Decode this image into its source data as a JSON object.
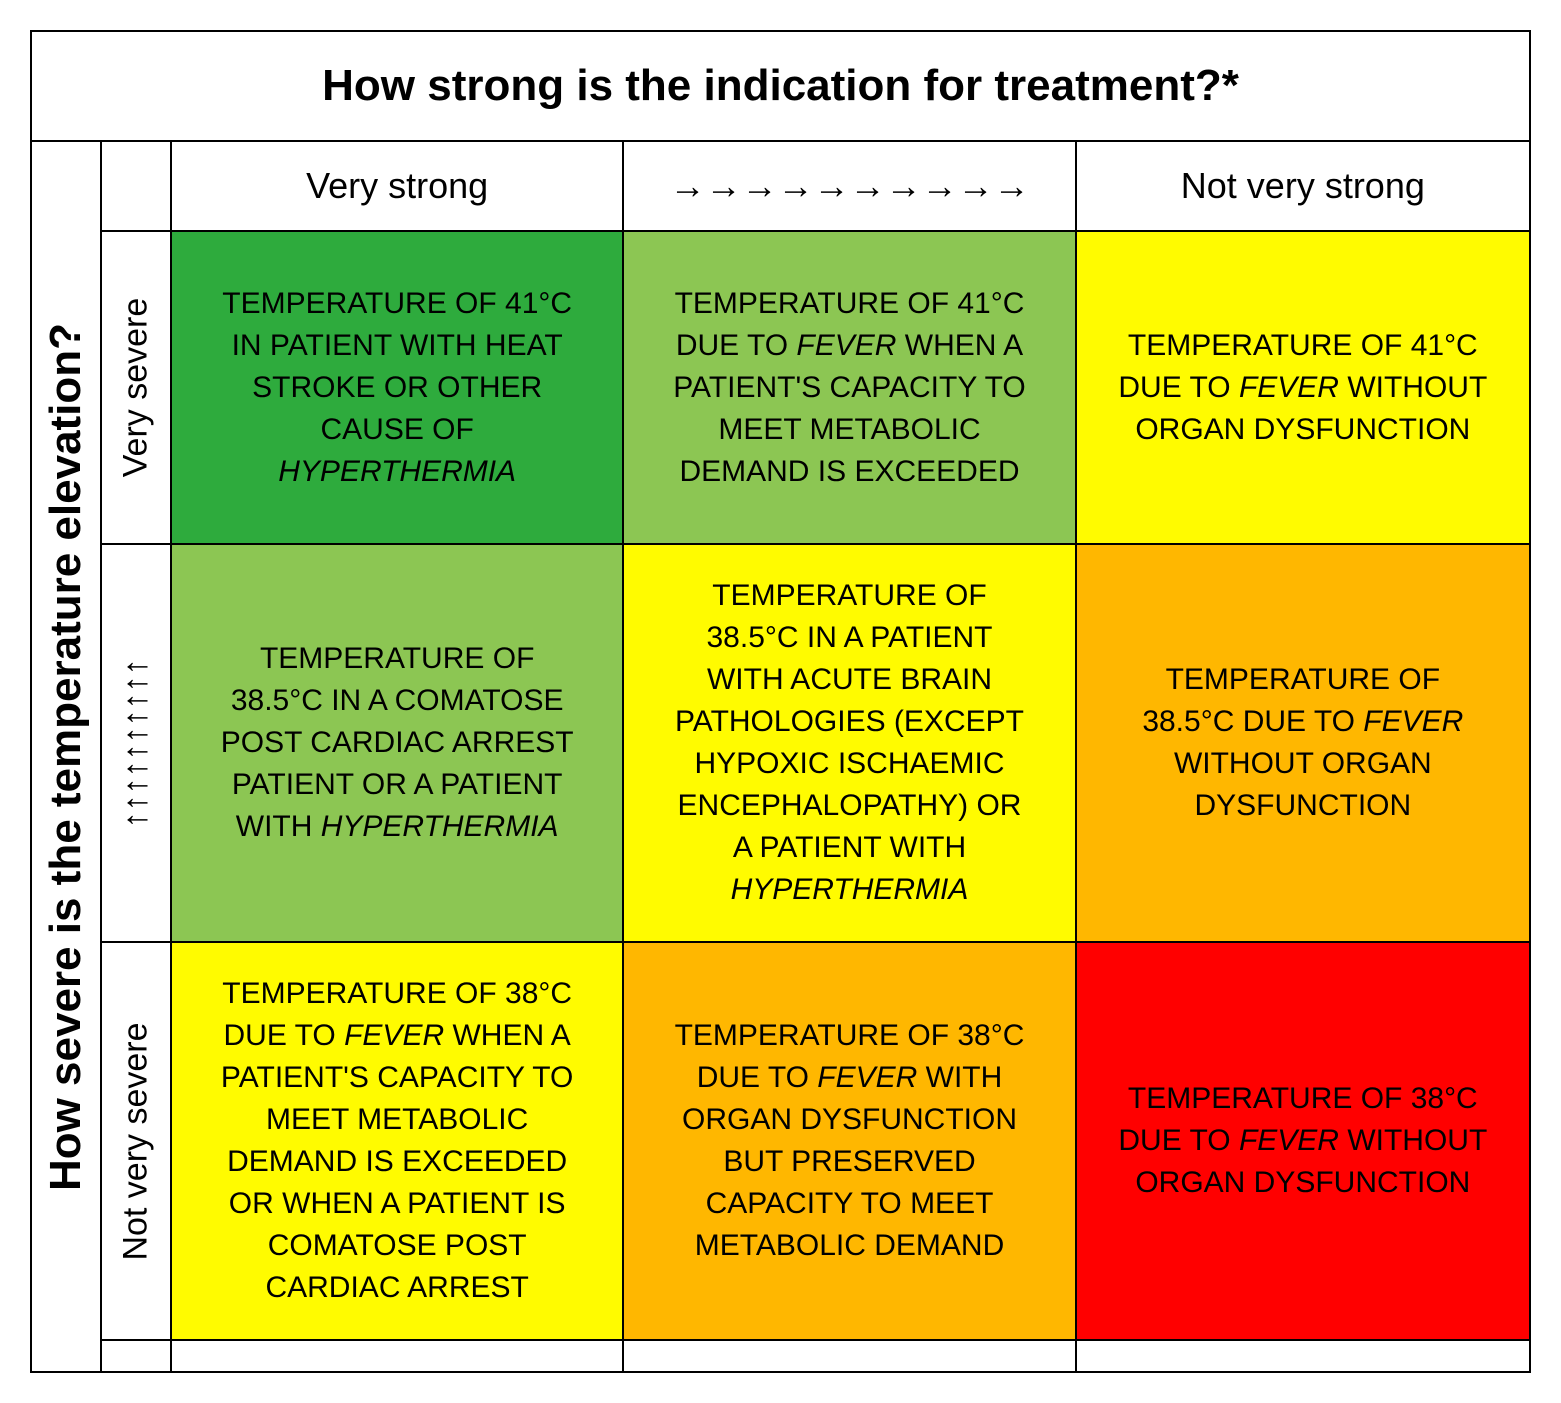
{
  "matrix": {
    "type": "table",
    "top_header": "How strong is the indication for treatment?*",
    "left_header": "How severe is the temperature elevation?",
    "header_fontsize": 44,
    "header_fontweight": "700",
    "col_labels": [
      "Very strong",
      "→→→→→→→→→→",
      "Not very strong"
    ],
    "col_label_fontsize": 36,
    "row_labels": [
      "Very severe",
      "↑↑↑↑↑↑↑↑↑↑",
      "Not very severe"
    ],
    "row_label_fontsize": 34,
    "cell_fontsize": 30,
    "cell_text_transform": "uppercase",
    "border_color": "#000000",
    "border_width": 2,
    "background_color": "#ffffff",
    "colors": {
      "green_dark": "#2eab3d",
      "green_mid": "#8cc653",
      "yellow": "#fffb00",
      "orange": "#ffb700",
      "red": "#ff0000"
    },
    "cells": [
      [
        {
          "text": "Temperature of 41°C in patient with heat stroke or other cause of <em>hyperthermia</em>",
          "color": "#2eab3d"
        },
        {
          "text": "Temperature of 41°C due to <em>fever</em> when a patient's capacity to meet metabolic demand is exceeded",
          "color": "#8cc653"
        },
        {
          "text": "Temperature of 41°C due to <em>fever</em> without organ dysfunction",
          "color": "#fffb00"
        }
      ],
      [
        {
          "text": "Temperature of 38.5°C in a comatose post cardiac arrest patient or a patient with <em>hyperthermia</em>",
          "color": "#8cc653"
        },
        {
          "text": "Temperature of 38.5°C in a patient with acute brain pathologies (except hypoxic ischaemic encephalopathy) or a patient with <em>hyperthermia</em>",
          "color": "#fffb00"
        },
        {
          "text": "Temperature of 38.5°C due to <em>fever</em> without organ dysfunction",
          "color": "#ffb700"
        }
      ],
      [
        {
          "text": "Temperature of 38°C due to <em>fever</em> when a patient's capacity to meet metabolic demand is exceeded or when a patient is comatose post cardiac arrest",
          "color": "#fffb00"
        },
        {
          "text": "Temperature of 38°C due to <em>fever</em> with organ dysfunction but preserved capacity to meet metabolic demand",
          "color": "#ffb700"
        },
        {
          "text": "Temperature of 38°C due to <em>fever</em> without organ dysfunction",
          "color": "#ff0000"
        }
      ]
    ]
  }
}
